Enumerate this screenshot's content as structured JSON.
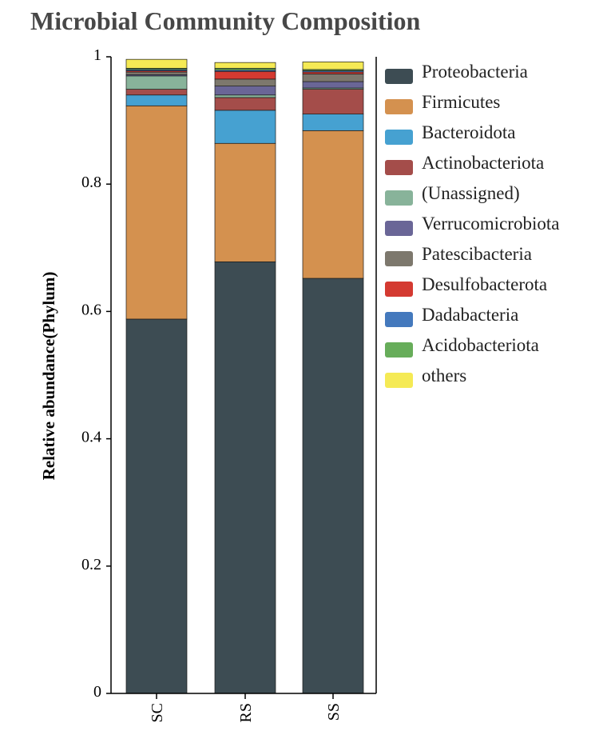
{
  "title": "Microbial Community Composition",
  "chart_data": {
    "type": "bar",
    "stacked": true,
    "ylabel": "Relative abundance(Phylum)",
    "xlabel": "",
    "ylim": [
      0,
      1
    ],
    "yticks": [
      "0",
      "0.2",
      "0.4",
      "0.6",
      "0.8",
      "1"
    ],
    "categories": [
      "SC",
      "RS",
      "SS"
    ],
    "legend_position": "right",
    "series": [
      {
        "name": "Proteobacteria",
        "color": "#3d4c53",
        "values": [
          0.588,
          0.678,
          0.652
        ]
      },
      {
        "name": "Firmicutes",
        "color": "#d4914f",
        "values": [
          0.335,
          0.186,
          0.232
        ]
      },
      {
        "name": "Bacteroidota",
        "color": "#46a1d1",
        "values": [
          0.017,
          0.052,
          0.026
        ]
      },
      {
        "name": "Actinobacteriota",
        "color": "#a44d4a",
        "values": [
          0.009,
          0.02,
          0.039
        ]
      },
      {
        "name": "(Unassigned)",
        "color": "#88b39a",
        "values": [
          0.021,
          0.004,
          0.002
        ]
      },
      {
        "name": "Verrucomicrobiota",
        "color": "#6a6697",
        "values": [
          0.002,
          0.014,
          0.01
        ]
      },
      {
        "name": "Patescibacteria",
        "color": "#7d786d",
        "values": [
          0.004,
          0.011,
          0.012
        ]
      },
      {
        "name": "Desulfobacterota",
        "color": "#d43a31",
        "values": [
          0.002,
          0.012,
          0.003
        ]
      },
      {
        "name": "Dadabacteria",
        "color": "#4479bd",
        "values": [
          0.002,
          0.002,
          0.002
        ]
      },
      {
        "name": "Acidobacteriota",
        "color": "#67ad5a",
        "values": [
          0.002,
          0.003,
          0.002
        ]
      },
      {
        "name": "others",
        "color": "#f5ea55",
        "values": [
          0.014,
          0.009,
          0.012
        ]
      }
    ]
  }
}
